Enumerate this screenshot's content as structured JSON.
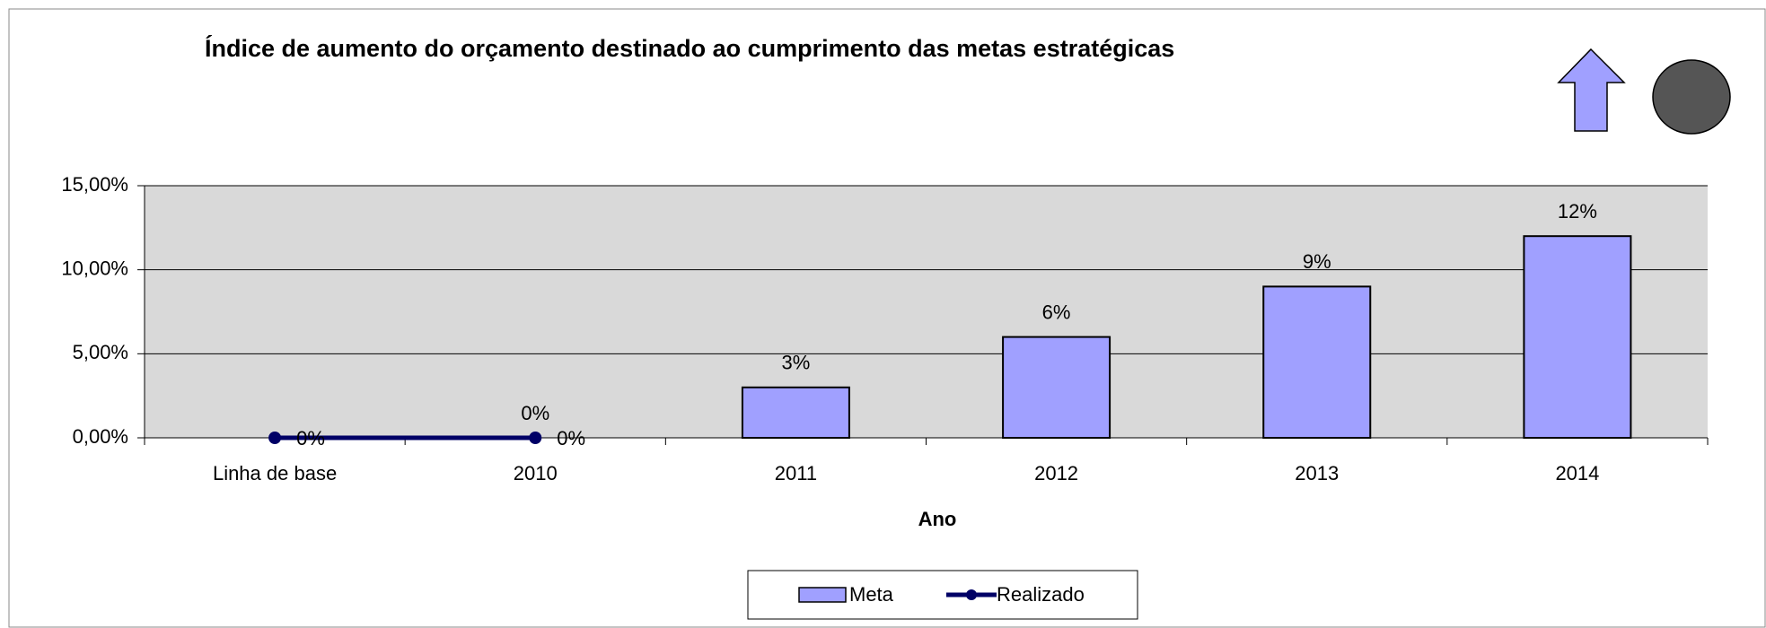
{
  "chart_data": {
    "type": "bar",
    "title": "Índice de aumento do orçamento destinado ao cumprimento das metas estratégicas",
    "x_label": "Ano",
    "categories": [
      "Linha de base",
      "2010",
      "2011",
      "2012",
      "2013",
      "2014"
    ],
    "series": [
      {
        "name": "Meta",
        "type": "bar",
        "color": "#a0a0ff",
        "values": [
          null,
          0,
          3,
          6,
          9,
          12
        ],
        "value_labels": [
          null,
          "0%",
          "3%",
          "6%",
          "9%",
          "12%"
        ]
      },
      {
        "name": "Realizado",
        "type": "line",
        "color": "#000066",
        "values": [
          0,
          0,
          null,
          null,
          null,
          null
        ],
        "value_labels": [
          "0%",
          "0%",
          null,
          null,
          null,
          null
        ]
      }
    ],
    "ylim": [
      0,
      15
    ],
    "yticks": [
      {
        "value": 0,
        "label": "0,00%"
      },
      {
        "value": 5,
        "label": "5,00%"
      },
      {
        "value": 10,
        "label": "10,00%"
      },
      {
        "value": 15,
        "label": "15,00%"
      }
    ],
    "grid": true,
    "legend": "bottom"
  }
}
